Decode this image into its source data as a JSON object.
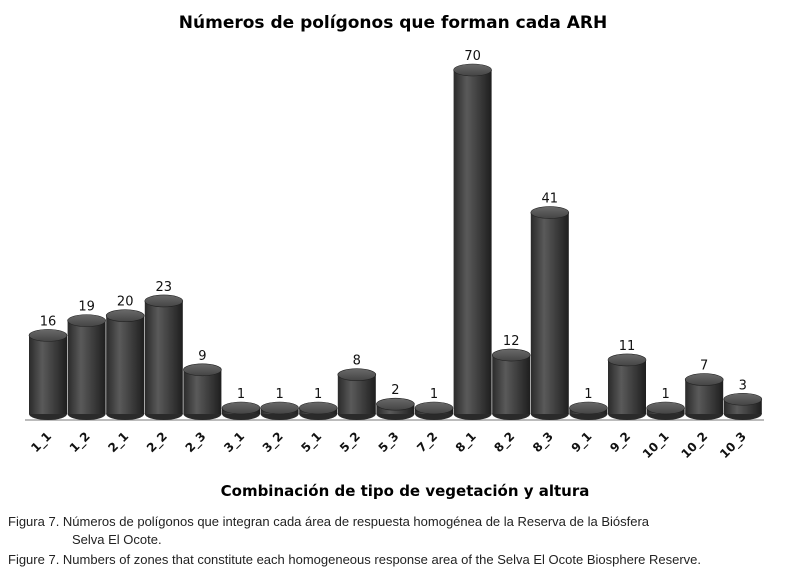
{
  "chart_data": {
    "type": "bar",
    "title": "Números de polígonos  que forman cada ARH",
    "xlabel": "Combinación de tipo de vegetación y altura",
    "ylabel": "",
    "categories": [
      "1_1",
      "1_2",
      "2_1",
      "2_2",
      "2_3",
      "3_1",
      "3_2",
      "5_1",
      "5_2",
      "5_3",
      "7_2",
      "8_1",
      "8_2",
      "8_3",
      "9_1",
      "9_2",
      "10_1",
      "10_2",
      "10_3"
    ],
    "values": [
      16,
      19,
      20,
      23,
      9,
      1,
      1,
      1,
      8,
      2,
      1,
      70,
      12,
      41,
      1,
      11,
      1,
      7,
      3
    ],
    "ylim": [
      0,
      70
    ],
    "grid": false,
    "legend": "none",
    "bar_color": "#3a3a3a"
  },
  "captions": {
    "es_line1": "Figura 7. Números de polígonos que integran cada área de respuesta homogénea de la Reserva de la Biósfera",
    "es_line2": "Selva El Ocote.",
    "en": "Figure 7. Numbers of zones that constitute each homogeneous response area of the Selva El Ocote Biosphere Reserve."
  }
}
